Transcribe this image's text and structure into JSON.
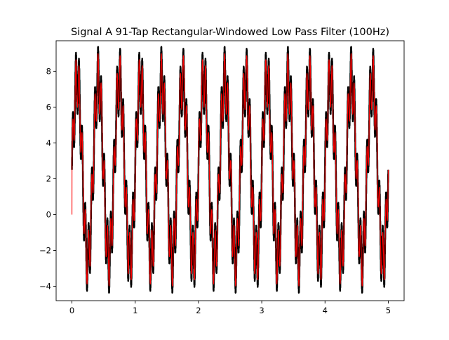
{
  "chart_data": {
    "type": "line",
    "title": "Signal A 91-Tap Rectangular-Windowed Low Pass Filter (100Hz)",
    "xlabel": "",
    "ylabel": "",
    "xlim": [
      -0.25,
      5.25
    ],
    "ylim": [
      -4.8,
      9.7
    ],
    "x_ticks": [
      0,
      1,
      2,
      3,
      4,
      5
    ],
    "x_tick_labels": [
      "0",
      "1",
      "2",
      "3",
      "4",
      "5"
    ],
    "y_ticks": [
      -4,
      -2,
      0,
      2,
      4,
      6,
      8
    ],
    "y_tick_labels": [
      "−4",
      "−2",
      "0",
      "2",
      "4",
      "6",
      "8"
    ],
    "grid": false,
    "legend": "none",
    "series": [
      {
        "role": "raw signal",
        "color": "#000000",
        "x_range": [
          0,
          5
        ],
        "components": [
          {
            "amplitude": 5.0,
            "frequency_hz": 3
          },
          {
            "amplitude": 1.5,
            "frequency_hz": 20
          },
          {
            "amplitude": 0.45,
            "frequency_hz": 300
          }
        ],
        "offset": 2.5
      },
      {
        "role": "filtered signal",
        "color": "#ff0000",
        "x_range": [
          0,
          5
        ],
        "start_value": 0,
        "components": [
          {
            "amplitude": 5.0,
            "frequency_hz": 3
          },
          {
            "amplitude": 1.5,
            "frequency_hz": 20
          }
        ],
        "offset": 2.5
      }
    ]
  }
}
